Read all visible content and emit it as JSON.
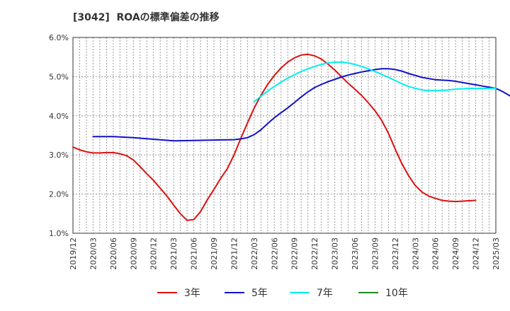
{
  "chart_data": {
    "type": "line",
    "title": "[3042]  ROAの標準偏差の推移",
    "y_ticks": [
      "1.0%",
      "2.0%",
      "3.0%",
      "4.0%",
      "5.0%",
      "6.0%"
    ],
    "y_tick_values": [
      1.0,
      2.0,
      3.0,
      4.0,
      5.0,
      6.0
    ],
    "ylim": [
      1.0,
      6.0
    ],
    "x_ticks": [
      "2019/12",
      "2020/03",
      "2020/06",
      "2020/09",
      "2020/12",
      "2021/03",
      "2021/06",
      "2021/09",
      "2021/12",
      "2022/03",
      "2022/06",
      "2022/09",
      "2022/12",
      "2023/03",
      "2023/06",
      "2023/09",
      "2023/12",
      "2024/03",
      "2024/06",
      "2024/09",
      "2024/12",
      "2025/03"
    ],
    "grid": true,
    "legend_position": "bottom",
    "series": [
      {
        "name": "3年",
        "color": "#dd1111",
        "points": [
          [
            "2019/12",
            3.2
          ],
          [
            "2020/01",
            3.13
          ],
          [
            "2020/02",
            3.08
          ],
          [
            "2020/03",
            3.05
          ],
          [
            "2020/04",
            3.05
          ],
          [
            "2020/05",
            3.06
          ],
          [
            "2020/06",
            3.06
          ],
          [
            "2020/07",
            3.03
          ],
          [
            "2020/08",
            2.98
          ],
          [
            "2020/09",
            2.87
          ],
          [
            "2020/10",
            2.7
          ],
          [
            "2020/11",
            2.52
          ],
          [
            "2020/12",
            2.35
          ],
          [
            "2021/01",
            2.15
          ],
          [
            "2021/02",
            1.95
          ],
          [
            "2021/03",
            1.72
          ],
          [
            "2021/04",
            1.5
          ],
          [
            "2021/05",
            1.33
          ],
          [
            "2021/06",
            1.35
          ],
          [
            "2021/07",
            1.55
          ],
          [
            "2021/08",
            1.85
          ],
          [
            "2021/09",
            2.12
          ],
          [
            "2021/10",
            2.4
          ],
          [
            "2021/11",
            2.65
          ],
          [
            "2021/12",
            3.0
          ],
          [
            "2022/01",
            3.42
          ],
          [
            "2022/02",
            3.82
          ],
          [
            "2022/03",
            4.2
          ],
          [
            "2022/04",
            4.52
          ],
          [
            "2022/05",
            4.8
          ],
          [
            "2022/06",
            5.03
          ],
          [
            "2022/07",
            5.22
          ],
          [
            "2022/08",
            5.37
          ],
          [
            "2022/09",
            5.48
          ],
          [
            "2022/10",
            5.55
          ],
          [
            "2022/11",
            5.57
          ],
          [
            "2022/12",
            5.53
          ],
          [
            "2023/01",
            5.45
          ],
          [
            "2023/02",
            5.32
          ],
          [
            "2023/03",
            5.17
          ],
          [
            "2023/04",
            5.0
          ],
          [
            "2023/05",
            4.83
          ],
          [
            "2023/06",
            4.68
          ],
          [
            "2023/07",
            4.52
          ],
          [
            "2023/08",
            4.33
          ],
          [
            "2023/09",
            4.13
          ],
          [
            "2023/10",
            3.88
          ],
          [
            "2023/11",
            3.55
          ],
          [
            "2023/12",
            3.15
          ],
          [
            "2024/01",
            2.78
          ],
          [
            "2024/02",
            2.47
          ],
          [
            "2024/03",
            2.22
          ],
          [
            "2024/04",
            2.05
          ],
          [
            "2024/05",
            1.95
          ],
          [
            "2024/06",
            1.89
          ],
          [
            "2024/07",
            1.84
          ],
          [
            "2024/08",
            1.82
          ],
          [
            "2024/09",
            1.81
          ],
          [
            "2024/10",
            1.82
          ],
          [
            "2024/11",
            1.83
          ],
          [
            "2024/12",
            1.84
          ]
        ]
      },
      {
        "name": "5年",
        "color": "#1111cc",
        "points": [
          [
            "2020/03",
            3.47
          ],
          [
            "2020/06",
            3.47
          ],
          [
            "2020/09",
            3.44
          ],
          [
            "2020/12",
            3.4
          ],
          [
            "2021/03",
            3.36
          ],
          [
            "2021/06",
            3.37
          ],
          [
            "2021/09",
            3.38
          ],
          [
            "2021/12",
            3.39
          ],
          [
            "2022/01",
            3.41
          ],
          [
            "2022/02",
            3.44
          ],
          [
            "2022/03",
            3.52
          ],
          [
            "2022/04",
            3.64
          ],
          [
            "2022/05",
            3.8
          ],
          [
            "2022/06",
            3.95
          ],
          [
            "2022/07",
            4.08
          ],
          [
            "2022/08",
            4.2
          ],
          [
            "2022/09",
            4.34
          ],
          [
            "2022/10",
            4.48
          ],
          [
            "2022/11",
            4.61
          ],
          [
            "2022/12",
            4.72
          ],
          [
            "2023/01",
            4.8
          ],
          [
            "2023/02",
            4.87
          ],
          [
            "2023/03",
            4.93
          ],
          [
            "2023/04",
            4.99
          ],
          [
            "2023/05",
            5.04
          ],
          [
            "2023/06",
            5.08
          ],
          [
            "2023/07",
            5.12
          ],
          [
            "2023/08",
            5.15
          ],
          [
            "2023/09",
            5.18
          ],
          [
            "2023/10",
            5.2
          ],
          [
            "2023/11",
            5.2
          ],
          [
            "2023/12",
            5.18
          ],
          [
            "2024/01",
            5.14
          ],
          [
            "2024/02",
            5.08
          ],
          [
            "2024/03",
            5.03
          ],
          [
            "2024/04",
            4.98
          ],
          [
            "2024/05",
            4.95
          ],
          [
            "2024/06",
            4.92
          ],
          [
            "2024/07",
            4.91
          ],
          [
            "2024/08",
            4.9
          ],
          [
            "2024/09",
            4.88
          ],
          [
            "2024/10",
            4.85
          ],
          [
            "2024/11",
            4.82
          ],
          [
            "2024/12",
            4.79
          ],
          [
            "2025/01",
            4.76
          ],
          [
            "2025/02",
            4.73
          ],
          [
            "2025/03",
            4.7
          ],
          [
            "2025/04",
            4.62
          ],
          [
            "2025/05",
            4.52
          ],
          [
            "2025/06",
            4.4
          ]
        ]
      },
      {
        "name": "7年",
        "color": "#00eeee",
        "points": [
          [
            "2022/03",
            4.36
          ],
          [
            "2022/04",
            4.5
          ],
          [
            "2022/05",
            4.63
          ],
          [
            "2022/06",
            4.75
          ],
          [
            "2022/07",
            4.86
          ],
          [
            "2022/08",
            4.96
          ],
          [
            "2022/09",
            5.05
          ],
          [
            "2022/10",
            5.13
          ],
          [
            "2022/11",
            5.2
          ],
          [
            "2022/12",
            5.26
          ],
          [
            "2023/01",
            5.31
          ],
          [
            "2023/02",
            5.35
          ],
          [
            "2023/03",
            5.37
          ],
          [
            "2023/04",
            5.37
          ],
          [
            "2023/05",
            5.35
          ],
          [
            "2023/06",
            5.31
          ],
          [
            "2023/07",
            5.26
          ],
          [
            "2023/08",
            5.2
          ],
          [
            "2023/09",
            5.13
          ],
          [
            "2023/10",
            5.06
          ],
          [
            "2023/11",
            4.98
          ],
          [
            "2023/12",
            4.9
          ],
          [
            "2024/01",
            4.82
          ],
          [
            "2024/02",
            4.75
          ],
          [
            "2024/03",
            4.7
          ],
          [
            "2024/04",
            4.66
          ],
          [
            "2024/05",
            4.64
          ],
          [
            "2024/06",
            4.64
          ],
          [
            "2024/07",
            4.65
          ],
          [
            "2024/08",
            4.66
          ],
          [
            "2024/09",
            4.68
          ],
          [
            "2024/10",
            4.69
          ],
          [
            "2024/11",
            4.7
          ],
          [
            "2024/12",
            4.7
          ],
          [
            "2025/01",
            4.7
          ],
          [
            "2025/02",
            4.7
          ],
          [
            "2025/03",
            4.7
          ]
        ]
      },
      {
        "name": "10年",
        "color": "#228822",
        "points": []
      }
    ]
  }
}
